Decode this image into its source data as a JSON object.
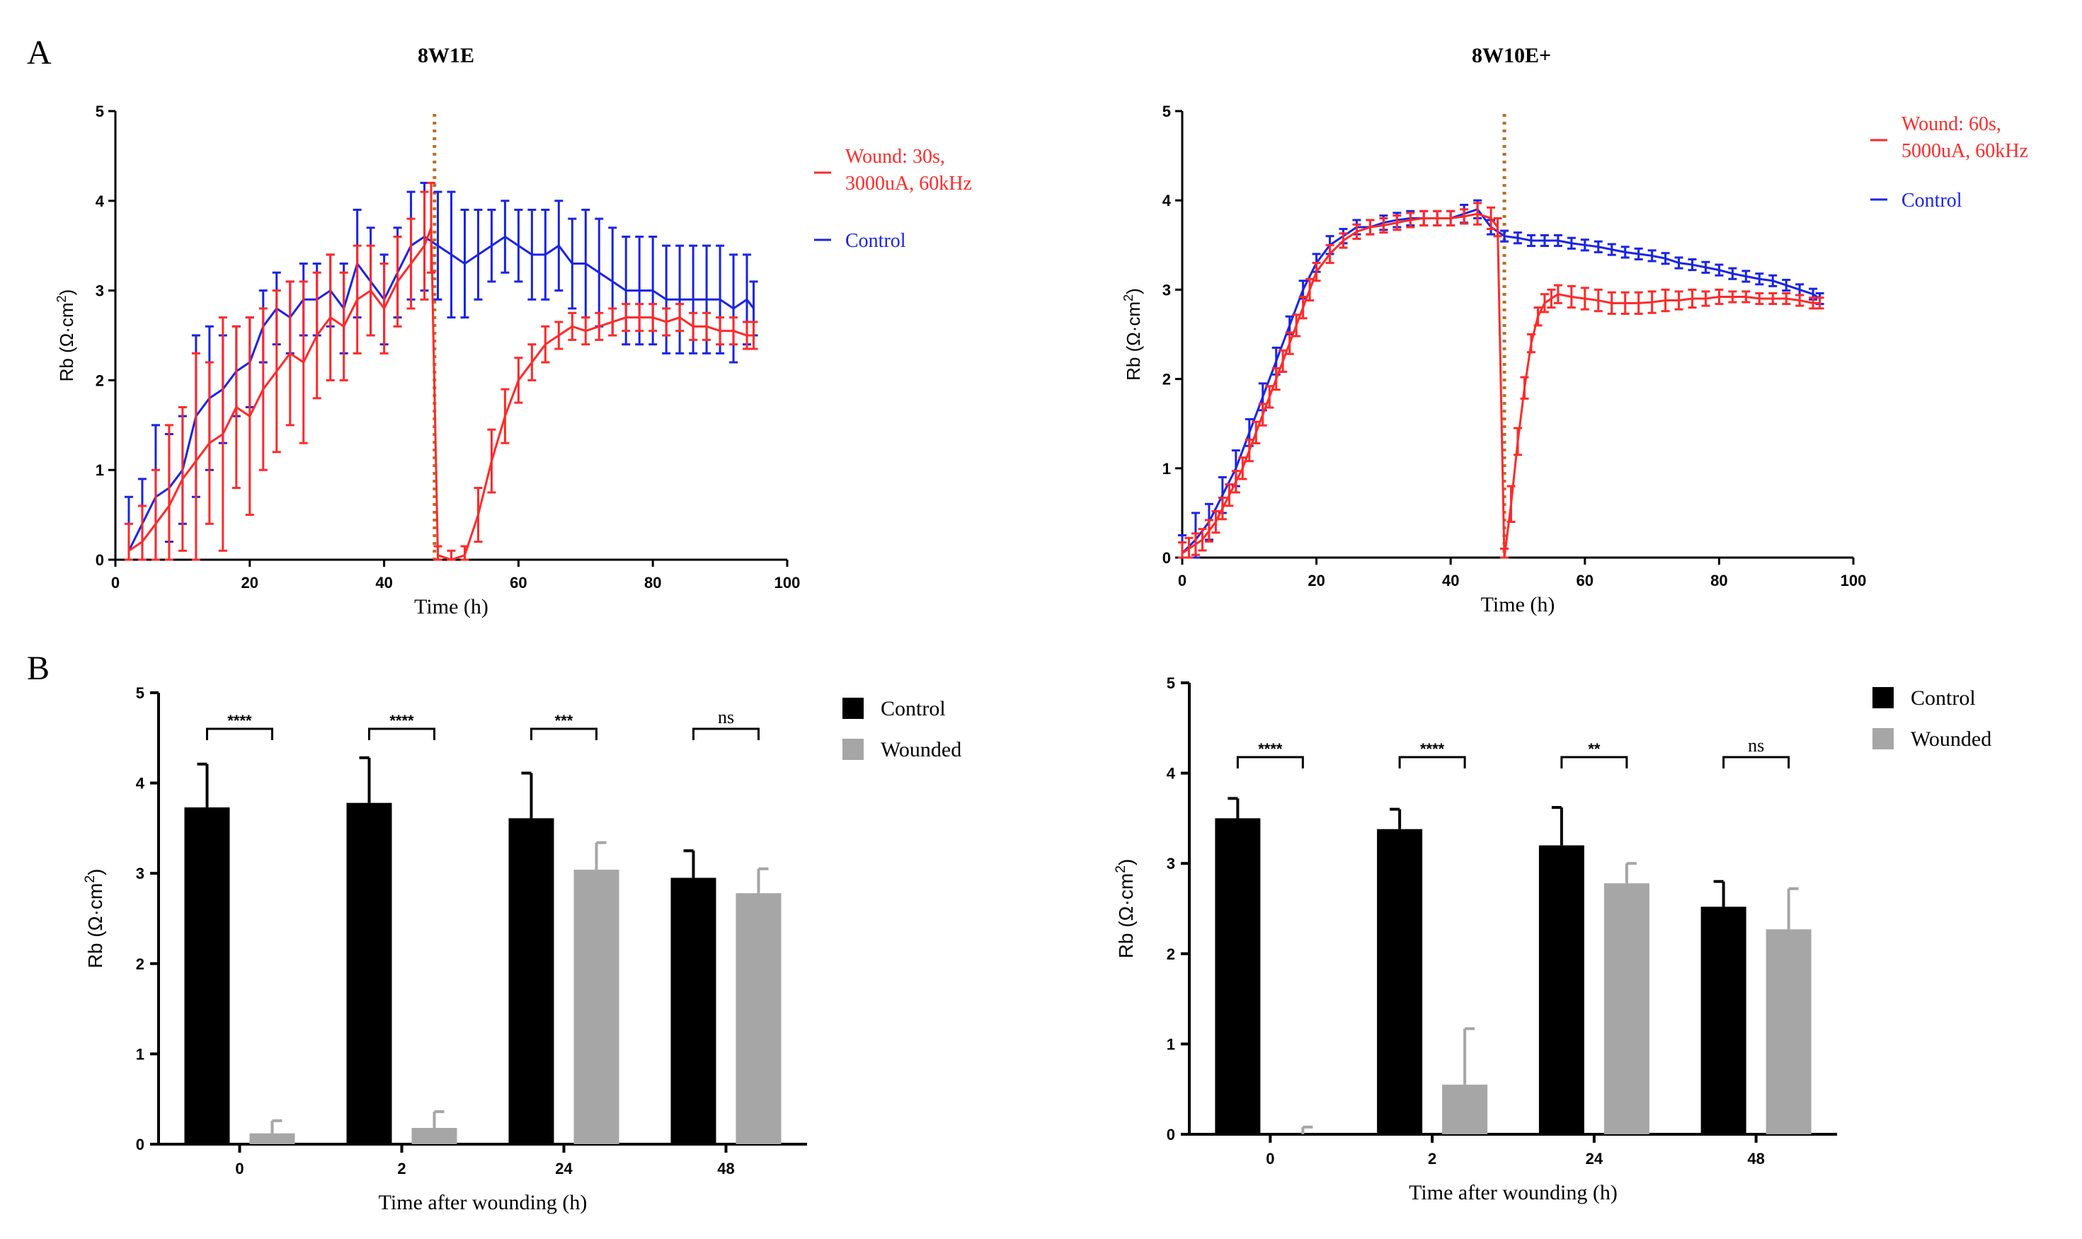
{
  "panel_labels": {
    "a": "A",
    "b": "B"
  },
  "colors": {
    "wounded": "#ff2a2a",
    "control": "#1a24e6",
    "marker": "#b5712a",
    "bar_control": "#000000",
    "bar_wounded": "#a6a6a6"
  },
  "chart_data": [
    {
      "type": "line",
      "title": "8W1E",
      "xlabel": "Time (h)",
      "ylabel": "Rb (Ω·cm²)",
      "xlim": [
        0,
        100
      ],
      "ylim": [
        0,
        5
      ],
      "xticks": [
        "0",
        "20",
        "40",
        "60",
        "80",
        "100"
      ],
      "yticks": [
        "0",
        "1",
        "2",
        "3",
        "4",
        "5"
      ],
      "wound_time": 47.5,
      "legend": {
        "wounded": "Wound: 30s,",
        "wounded_line2": "3000uA, 60kHz",
        "control": "Control"
      },
      "series": [
        {
          "name": "Wound: 30s, 3000uA, 60kHz",
          "x": [
            2,
            4,
            6,
            8,
            10,
            12,
            14,
            16,
            18,
            20,
            22,
            24,
            26,
            28,
            30,
            32,
            34,
            36,
            38,
            40,
            42,
            44,
            46,
            47,
            48,
            50,
            52,
            54,
            56,
            58,
            60,
            62,
            64,
            66,
            68,
            70,
            72,
            74,
            76,
            78,
            80,
            82,
            84,
            86,
            88,
            90,
            92,
            94,
            95
          ],
          "values": [
            0.1,
            0.2,
            0.4,
            0.6,
            0.9,
            1.1,
            1.3,
            1.4,
            1.7,
            1.6,
            1.9,
            2.1,
            2.3,
            2.2,
            2.5,
            2.7,
            2.6,
            2.9,
            3.0,
            2.8,
            3.1,
            3.3,
            3.5,
            3.7,
            0.05,
            0.0,
            0.05,
            0.5,
            1.1,
            1.6,
            2.0,
            2.2,
            2.4,
            2.5,
            2.6,
            2.55,
            2.6,
            2.65,
            2.7,
            2.7,
            2.7,
            2.65,
            2.7,
            2.6,
            2.6,
            2.55,
            2.55,
            2.5,
            2.5
          ],
          "errors": [
            0.3,
            0.4,
            0.6,
            0.9,
            0.8,
            1.2,
            0.9,
            1.3,
            0.9,
            1.1,
            0.9,
            0.9,
            0.8,
            0.9,
            0.7,
            0.7,
            0.6,
            0.6,
            0.5,
            0.5,
            0.5,
            0.5,
            0.6,
            0.5,
            0.1,
            0.1,
            0.1,
            0.3,
            0.35,
            0.3,
            0.25,
            0.2,
            0.2,
            0.15,
            0.15,
            0.15,
            0.15,
            0.15,
            0.15,
            0.15,
            0.15,
            0.15,
            0.15,
            0.15,
            0.15,
            0.15,
            0.15,
            0.15,
            0.15
          ]
        },
        {
          "name": "Control",
          "x": [
            2,
            4,
            6,
            8,
            10,
            12,
            14,
            16,
            18,
            20,
            22,
            24,
            26,
            28,
            30,
            32,
            34,
            36,
            38,
            40,
            42,
            44,
            46,
            48,
            50,
            52,
            54,
            56,
            58,
            60,
            62,
            64,
            66,
            68,
            70,
            72,
            74,
            76,
            78,
            80,
            82,
            84,
            86,
            88,
            90,
            92,
            94,
            95
          ],
          "values": [
            0.1,
            0.4,
            0.7,
            0.8,
            1.0,
            1.6,
            1.8,
            1.9,
            2.1,
            2.2,
            2.6,
            2.8,
            2.7,
            2.9,
            2.9,
            3.0,
            2.8,
            3.3,
            3.1,
            2.9,
            3.2,
            3.5,
            3.6,
            3.5,
            3.4,
            3.3,
            3.4,
            3.5,
            3.6,
            3.5,
            3.4,
            3.4,
            3.5,
            3.3,
            3.3,
            3.2,
            3.1,
            3.0,
            3.0,
            3.0,
            2.9,
            2.9,
            2.9,
            2.9,
            2.9,
            2.8,
            2.9,
            2.8
          ],
          "errors": [
            0.6,
            0.5,
            0.8,
            0.6,
            0.6,
            0.9,
            0.8,
            0.6,
            0.5,
            0.5,
            0.4,
            0.4,
            0.4,
            0.4,
            0.4,
            0.4,
            0.5,
            0.6,
            0.6,
            0.5,
            0.5,
            0.6,
            0.6,
            0.6,
            0.7,
            0.6,
            0.5,
            0.4,
            0.4,
            0.4,
            0.5,
            0.5,
            0.5,
            0.5,
            0.6,
            0.6,
            0.6,
            0.6,
            0.6,
            0.6,
            0.6,
            0.6,
            0.6,
            0.6,
            0.6,
            0.6,
            0.5,
            0.3
          ]
        }
      ]
    },
    {
      "type": "line",
      "title": "8W10E+",
      "xlabel": "Time (h)",
      "ylabel": "Rb (Ω·cm²)",
      "xlim": [
        0,
        100
      ],
      "ylim": [
        0,
        5
      ],
      "xticks": [
        "0",
        "20",
        "40",
        "60",
        "80",
        "100"
      ],
      "yticks": [
        "0",
        "1",
        "2",
        "3",
        "4",
        "5"
      ],
      "wound_time": 48,
      "legend": {
        "wounded": "Wound: 60s,",
        "wounded_line2": "5000uA, 60kHz",
        "control": "Control"
      },
      "series": [
        {
          "name": "Wound: 60s, 5000uA, 60kHz",
          "x": [
            0,
            1,
            2,
            3,
            4,
            5,
            6,
            7,
            8,
            9,
            10,
            11,
            12,
            13,
            14,
            15,
            16,
            17,
            18,
            19,
            20,
            22,
            24,
            26,
            28,
            30,
            32,
            34,
            36,
            38,
            40,
            42,
            44,
            46,
            47,
            48,
            49,
            50,
            51,
            52,
            53,
            54,
            55,
            56,
            58,
            60,
            62,
            64,
            66,
            68,
            70,
            72,
            74,
            76,
            78,
            80,
            82,
            84,
            86,
            88,
            90,
            92,
            94,
            95
          ],
          "values": [
            0.05,
            0.1,
            0.15,
            0.2,
            0.3,
            0.4,
            0.55,
            0.7,
            0.85,
            1.0,
            1.2,
            1.4,
            1.6,
            1.8,
            2.0,
            2.2,
            2.4,
            2.6,
            2.8,
            3.0,
            3.2,
            3.4,
            3.55,
            3.65,
            3.7,
            3.72,
            3.75,
            3.78,
            3.8,
            3.8,
            3.8,
            3.82,
            3.85,
            3.8,
            3.7,
            0.0,
            0.6,
            1.3,
            1.9,
            2.4,
            2.7,
            2.85,
            2.9,
            2.95,
            2.92,
            2.9,
            2.88,
            2.85,
            2.85,
            2.85,
            2.86,
            2.88,
            2.88,
            2.9,
            2.9,
            2.92,
            2.92,
            2.92,
            2.9,
            2.9,
            2.9,
            2.88,
            2.85,
            2.85
          ],
          "errors": [
            0.12,
            0.12,
            0.12,
            0.12,
            0.12,
            0.12,
            0.12,
            0.12,
            0.12,
            0.12,
            0.12,
            0.12,
            0.12,
            0.12,
            0.12,
            0.12,
            0.12,
            0.12,
            0.12,
            0.12,
            0.1,
            0.1,
            0.08,
            0.08,
            0.08,
            0.08,
            0.08,
            0.08,
            0.08,
            0.08,
            0.08,
            0.08,
            0.12,
            0.12,
            0.1,
            0.1,
            0.2,
            0.15,
            0.12,
            0.1,
            0.1,
            0.1,
            0.1,
            0.1,
            0.12,
            0.12,
            0.12,
            0.12,
            0.12,
            0.12,
            0.12,
            0.12,
            0.1,
            0.1,
            0.08,
            0.08,
            0.06,
            0.06,
            0.06,
            0.06,
            0.06,
            0.06,
            0.06,
            0.06
          ]
        },
        {
          "name": "Control",
          "x": [
            0,
            2,
            4,
            6,
            8,
            10,
            12,
            14,
            16,
            18,
            20,
            22,
            24,
            26,
            28,
            30,
            32,
            34,
            36,
            38,
            40,
            42,
            44,
            46,
            48,
            50,
            52,
            54,
            56,
            58,
            60,
            62,
            64,
            66,
            68,
            70,
            72,
            74,
            76,
            78,
            80,
            82,
            84,
            86,
            88,
            90,
            92,
            94,
            95
          ],
          "values": [
            0.05,
            0.2,
            0.4,
            0.7,
            1.0,
            1.4,
            1.8,
            2.2,
            2.6,
            3.0,
            3.3,
            3.5,
            3.6,
            3.7,
            3.7,
            3.75,
            3.78,
            3.8,
            3.8,
            3.8,
            3.8,
            3.85,
            3.9,
            3.7,
            3.6,
            3.58,
            3.55,
            3.55,
            3.55,
            3.52,
            3.5,
            3.48,
            3.45,
            3.42,
            3.4,
            3.38,
            3.35,
            3.3,
            3.28,
            3.25,
            3.22,
            3.18,
            3.15,
            3.12,
            3.1,
            3.05,
            3.0,
            2.95,
            2.9
          ],
          "errors": [
            0.2,
            0.3,
            0.2,
            0.2,
            0.2,
            0.15,
            0.15,
            0.15,
            0.1,
            0.1,
            0.1,
            0.1,
            0.08,
            0.08,
            0.08,
            0.08,
            0.08,
            0.08,
            0.08,
            0.08,
            0.08,
            0.1,
            0.1,
            0.08,
            0.06,
            0.06,
            0.06,
            0.06,
            0.06,
            0.06,
            0.06,
            0.06,
            0.06,
            0.06,
            0.06,
            0.06,
            0.06,
            0.06,
            0.06,
            0.06,
            0.06,
            0.06,
            0.06,
            0.06,
            0.06,
            0.06,
            0.06,
            0.06,
            0.06
          ]
        }
      ]
    },
    {
      "type": "bar",
      "xlabel": "Time after wounding (h)",
      "ylabel": "Rb (Ω·cm²)",
      "ylim": [
        0,
        5
      ],
      "yticks": [
        "0",
        "1",
        "2",
        "3",
        "4",
        "5"
      ],
      "categories": [
        "0",
        "2",
        "24",
        "48"
      ],
      "legend": {
        "control": "Control",
        "wounded": "Wounded"
      },
      "series": [
        {
          "name": "Control",
          "values": [
            3.73,
            3.78,
            3.61,
            2.95
          ],
          "errors": [
            0.48,
            0.5,
            0.5,
            0.3
          ]
        },
        {
          "name": "Wounded",
          "values": [
            0.12,
            0.18,
            3.04,
            2.78
          ],
          "errors": [
            0.14,
            0.18,
            0.3,
            0.27
          ]
        }
      ],
      "significance": [
        "****",
        "****",
        "***",
        "ns"
      ]
    },
    {
      "type": "bar",
      "xlabel": "Time after wounding (h)",
      "ylabel": "Rb (Ω·cm²)",
      "ylim": [
        0,
        5
      ],
      "yticks": [
        "0",
        "1",
        "2",
        "3",
        "4",
        "5"
      ],
      "categories": [
        "0",
        "2",
        "24",
        "48"
      ],
      "legend": {
        "control": "Control",
        "wounded": "Wounded"
      },
      "series": [
        {
          "name": "Control",
          "values": [
            3.5,
            3.38,
            3.2,
            2.52
          ],
          "errors": [
            0.22,
            0.22,
            0.42,
            0.28
          ]
        },
        {
          "name": "Wounded",
          "values": [
            0.0,
            0.55,
            2.78,
            2.27
          ],
          "errors": [
            0.08,
            0.62,
            0.22,
            0.45
          ]
        }
      ],
      "significance": [
        "****",
        "****",
        "**",
        "ns"
      ]
    }
  ]
}
